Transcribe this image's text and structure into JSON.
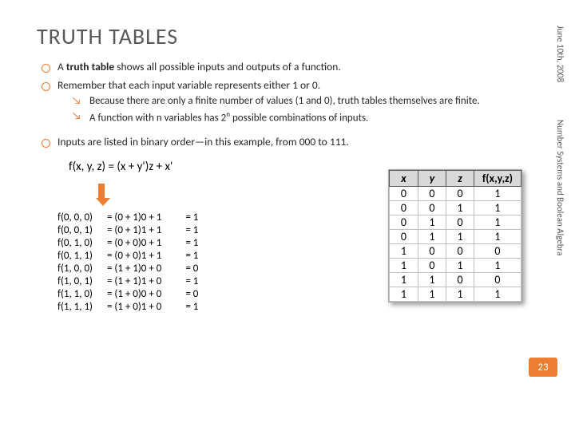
{
  "title": "TRUTH TABLES",
  "sidebar": {
    "date": "June 10th, 2008",
    "course": "Number Systems and Boolean Algebra"
  },
  "page_number": "23",
  "bullets": {
    "b1_pre": "A ",
    "b1_bold": "truth table",
    "b1_post": " shows all possible inputs and outputs of a function.",
    "b2": "Remember that each input variable represents either 1 or 0.",
    "b2a": "Because there are only a finite number of values (1 and 0), truth tables themselves are finite.",
    "b2b_pre": "A function with n variables has 2",
    "b2b_sup": "n",
    "b2b_post": " possible combinations of inputs.",
    "b3": "Inputs are listed in binary order—in this example, from 000 to 111."
  },
  "formula": "f(x, y, z) = (x + y')z + x'",
  "calc": {
    "rows": [
      {
        "a": "f(0, 0, 0)",
        "b": "= (0 + 1)0 + 1",
        "c": "= 1"
      },
      {
        "a": "f(0, 0, 1)",
        "b": "= (0 + 1)1 + 1",
        "c": "= 1"
      },
      {
        "a": "f(0, 1, 0)",
        "b": "= (0 + 0)0 + 1",
        "c": "= 1"
      },
      {
        "a": "f(0, 1, 1)",
        "b": "= (0 + 0)1 + 1",
        "c": "= 1"
      },
      {
        "a": "f(1, 0, 0)",
        "b": "= (1 + 1)0 + 0",
        "c": "= 0"
      },
      {
        "a": "f(1, 0, 1)",
        "b": "= (1 + 1)1 + 0",
        "c": "= 1"
      },
      {
        "a": "f(1, 1, 0)",
        "b": "= (1 + 0)0 + 0",
        "c": "= 0"
      },
      {
        "a": "f(1, 1, 1)",
        "b": "= (1 + 0)1 + 0",
        "c": "= 1"
      }
    ]
  },
  "truth": {
    "headers": [
      "x",
      "y",
      "z",
      "f(x,y,z)"
    ],
    "rows": [
      [
        "0",
        "0",
        "0",
        "1"
      ],
      [
        "0",
        "0",
        "1",
        "1"
      ],
      [
        "0",
        "1",
        "0",
        "1"
      ],
      [
        "0",
        "1",
        "1",
        "1"
      ],
      [
        "1",
        "0",
        "0",
        "0"
      ],
      [
        "1",
        "0",
        "1",
        "1"
      ],
      [
        "1",
        "1",
        "0",
        "0"
      ],
      [
        "1",
        "1",
        "1",
        "1"
      ]
    ]
  },
  "colors": {
    "accent": "#ed7d31",
    "title": "#595959",
    "header_bg": "#d9d9d9",
    "border": "#555555"
  }
}
